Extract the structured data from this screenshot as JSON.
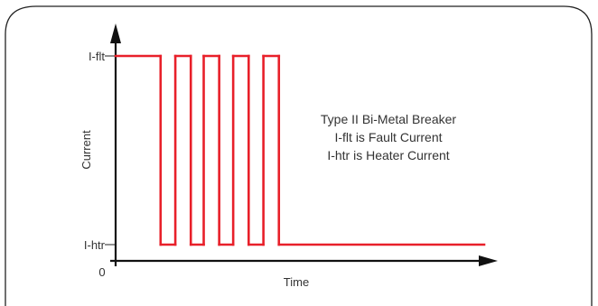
{
  "chart_data": {
    "type": "line",
    "title": "",
    "annotation": [
      "Type II Bi-Metal Breaker",
      "I-flt is Fault Current",
      "I-htr is Heater Current"
    ],
    "xlabel": "Time",
    "ylabel": "Current",
    "origin_label": "0",
    "y_ticks": [
      {
        "label": "I-flt",
        "value": 1
      },
      {
        "label": "I-htr",
        "value": 0
      }
    ],
    "xlim": [
      0,
      100
    ],
    "ylim": [
      -0.1,
      1.3
    ],
    "grid": false,
    "legend": "none",
    "series": [
      {
        "color": "#e8202a",
        "points": [
          [
            0,
            1
          ],
          [
            12.2,
            1
          ],
          [
            12.2,
            0
          ],
          [
            16.2,
            0
          ],
          [
            16.2,
            1
          ],
          [
            20.4,
            1
          ],
          [
            20.4,
            0
          ],
          [
            23.9,
            0
          ],
          [
            23.9,
            1
          ],
          [
            28.1,
            1
          ],
          [
            28.1,
            0
          ],
          [
            31.9,
            0
          ],
          [
            31.9,
            1
          ],
          [
            36.1,
            1
          ],
          [
            36.1,
            0
          ],
          [
            40.1,
            0
          ],
          [
            40.1,
            1
          ],
          [
            44.3,
            1
          ],
          [
            44.3,
            0
          ],
          [
            100,
            0
          ]
        ]
      }
    ]
  }
}
